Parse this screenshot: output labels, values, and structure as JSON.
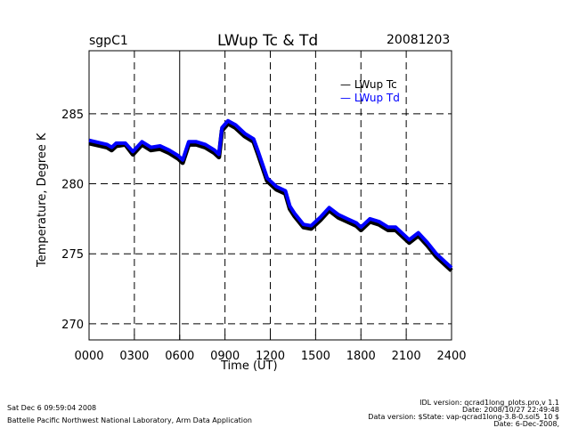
{
  "header": {
    "site": "sgpC1",
    "title": "LWup Tc & Td",
    "date": "20081203"
  },
  "footer": {
    "left": [
      "Sat Dec  6 09:59:04 2008",
      "Battelle Pacific Northwest National Laboratory, Arm Data Application"
    ],
    "right": [
      "IDL version: qcrad1long_plots.pro,v 1.1",
      "Date: 2008/10/27 22:49:48",
      "Data version: $State: vap-qcrad1long-3.8-0.sol5_10 $",
      "Date: 6-Dec-2008,"
    ]
  },
  "colors": {
    "tc": "#000000",
    "td": "#0000ff"
  },
  "chart_data": {
    "type": "line",
    "title": "LWup Tc & Td",
    "xlabel": "Time (UT)",
    "ylabel": "Temperature, Degree K",
    "xlim": [
      0,
      24
    ],
    "ylim": [
      268.85,
      289.5
    ],
    "xticks": [
      0,
      3,
      6,
      9,
      12,
      15,
      18,
      21,
      24
    ],
    "xtick_labels": [
      "0000",
      "0300",
      "0600",
      "0900",
      "1200",
      "1500",
      "1800",
      "2100",
      "2400"
    ],
    "yticks": [
      270,
      275,
      280,
      285
    ],
    "ytick_labels": [
      "270",
      "275",
      "280",
      "285"
    ],
    "grid": true,
    "legend_position": "top-right",
    "x": [
      0,
      1.2,
      1.5,
      1.8,
      2.4,
      2.9,
      3.5,
      4.1,
      4.7,
      5.3,
      5.9,
      6.2,
      6.6,
      7.1,
      7.7,
      8.3,
      8.6,
      8.8,
      9.2,
      9.7,
      10.3,
      10.9,
      11.2,
      11.8,
      12.4,
      13.0,
      13.3,
      13.6,
      14.2,
      14.7,
      15.3,
      15.9,
      16.5,
      17.1,
      17.7,
      18.0,
      18.6,
      19.2,
      19.8,
      20.3,
      20.9,
      21.2,
      21.8,
      22.4,
      23.0,
      23.6,
      24
    ],
    "series": [
      {
        "name": "LWup Tc",
        "values": [
          282.9,
          282.6,
          282.4,
          282.7,
          282.8,
          282.1,
          282.8,
          282.4,
          282.5,
          282.2,
          281.8,
          281.5,
          282.8,
          282.8,
          282.6,
          282.2,
          281.9,
          283.8,
          284.3,
          284.0,
          283.4,
          283.0,
          282.1,
          280.2,
          279.6,
          279.3,
          278.2,
          277.7,
          276.9,
          276.8,
          277.4,
          278.1,
          277.6,
          277.3,
          277.0,
          276.7,
          277.3,
          277.1,
          276.7,
          276.7,
          276.1,
          275.8,
          276.3,
          275.6,
          274.8,
          274.2,
          273.8
        ]
      },
      {
        "name": "LWup Td",
        "values": [
          283.1,
          282.8,
          282.6,
          282.9,
          282.9,
          282.3,
          283.0,
          282.6,
          282.7,
          282.4,
          282.0,
          281.7,
          283.0,
          283.0,
          282.8,
          282.4,
          282.1,
          284.0,
          284.5,
          284.2,
          283.6,
          283.2,
          282.3,
          280.4,
          279.8,
          279.5,
          278.4,
          277.9,
          277.1,
          277.0,
          277.6,
          278.3,
          277.8,
          277.5,
          277.2,
          276.9,
          277.5,
          277.3,
          276.9,
          276.9,
          276.3,
          276.0,
          276.5,
          275.8,
          275.0,
          274.4,
          274.0
        ]
      }
    ]
  }
}
